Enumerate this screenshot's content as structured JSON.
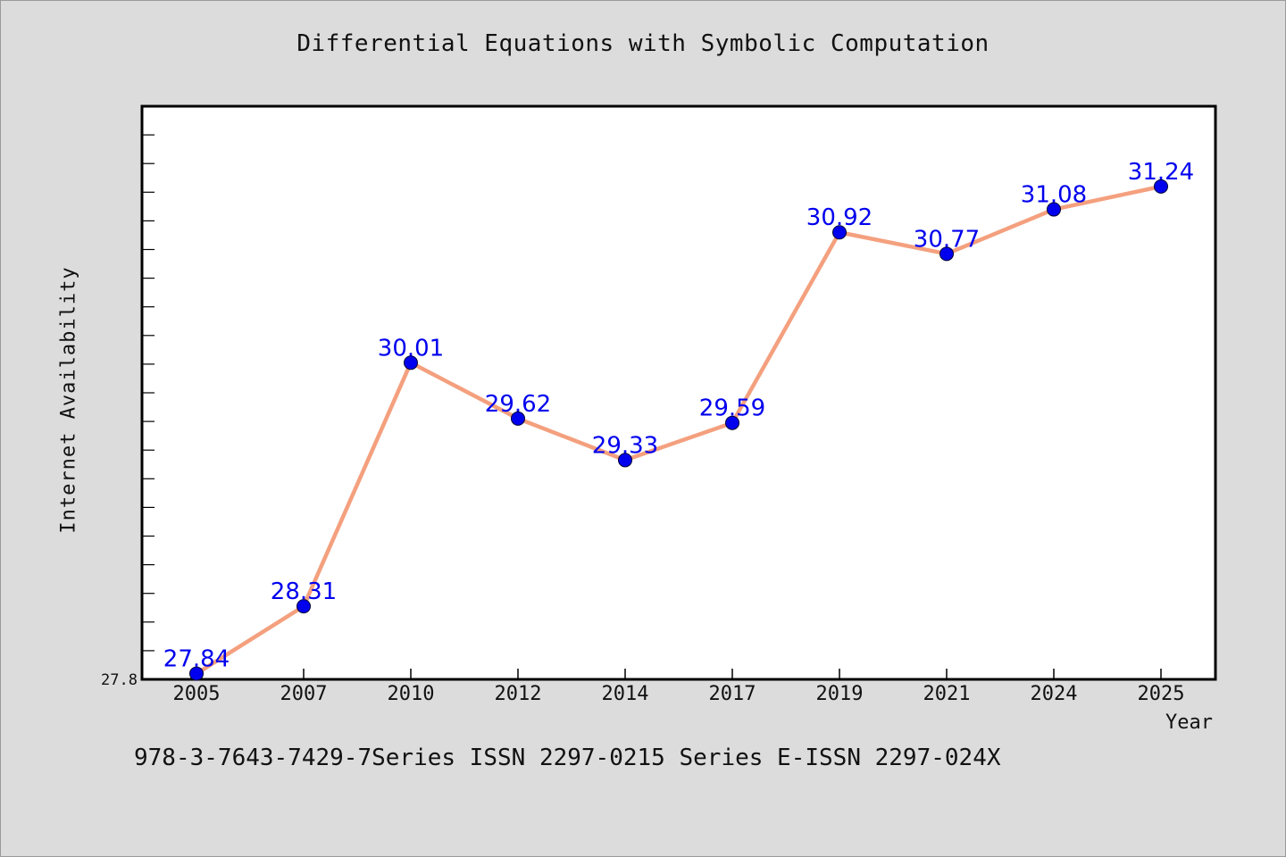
{
  "chart_data": {
    "type": "line",
    "title": "Differential Equations with Symbolic Computation",
    "xlabel": "Year",
    "ylabel": "Internet Availability",
    "categories": [
      "2005",
      "2007",
      "2010",
      "2012",
      "2014",
      "2017",
      "2019",
      "2021",
      "2024",
      "2025"
    ],
    "series": [
      {
        "values": [
          27.84,
          28.31,
          30.01,
          29.62,
          29.33,
          29.59,
          30.92,
          30.77,
          31.08,
          31.24
        ],
        "data_labels": [
          "27.84",
          "28.31",
          "30.01",
          "29.62",
          "29.33",
          "29.59",
          "30.92",
          "30.77",
          "31.08",
          "31.24"
        ]
      }
    ],
    "ylim": [
      27.8,
      31.8
    ],
    "y_tick_labels": [
      "27.8"
    ],
    "y_minor_tick_step": 0.2,
    "grid": false,
    "line_color": "#f4a07e",
    "marker_color": "#0000ee",
    "label_color": "#0000ee"
  },
  "footer": {
    "text": "978-3-7643-7429-7Series ISSN 2297-0215 Series E-ISSN 2297-024X"
  }
}
